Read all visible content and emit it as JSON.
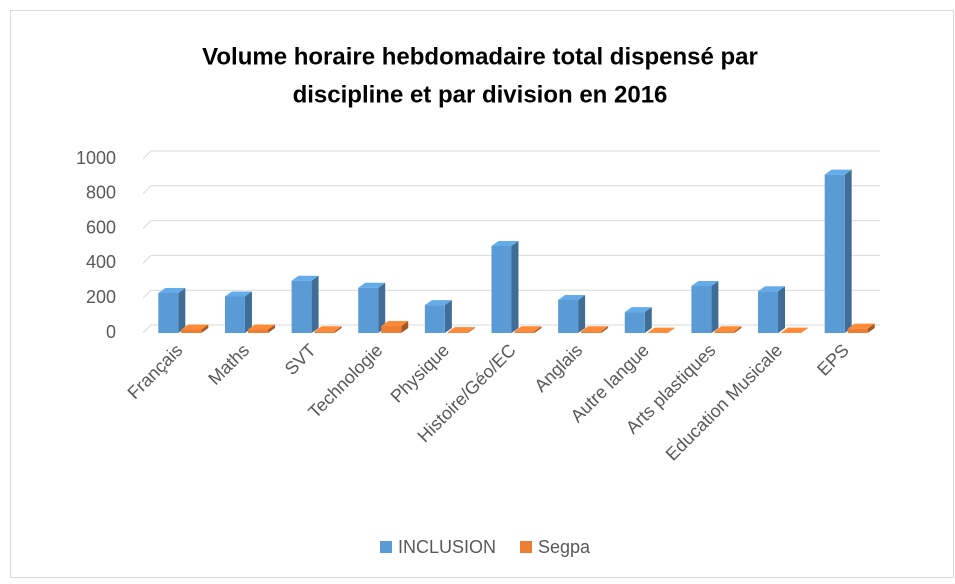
{
  "chart_data": {
    "type": "bar3d",
    "title": [
      "Volume horaire hebdomadaire total dispensé par",
      "discipline et par division en 2016"
    ],
    "categories": [
      "Français",
      "Maths",
      "SVT",
      "Technologie",
      "Physique",
      "Histoire/Géo/EC",
      "Anglais",
      "Autre langue",
      "Arts plastiques",
      "Education Musicale",
      "EPS"
    ],
    "series": [
      {
        "name": "INCLUSION",
        "color": "#5b9bd5",
        "values": [
          230,
          210,
          300,
          260,
          160,
          500,
          190,
          120,
          270,
          240,
          910
        ]
      },
      {
        "name": "Segpa",
        "color": "#ed7d31",
        "values": [
          20,
          20,
          10,
          40,
          5,
          10,
          10,
          2,
          10,
          2,
          25
        ]
      }
    ],
    "ylim": [
      0,
      1000
    ],
    "yticks": [
      0,
      200,
      400,
      600,
      800,
      1000
    ],
    "grid": true,
    "legend": "bottom"
  }
}
